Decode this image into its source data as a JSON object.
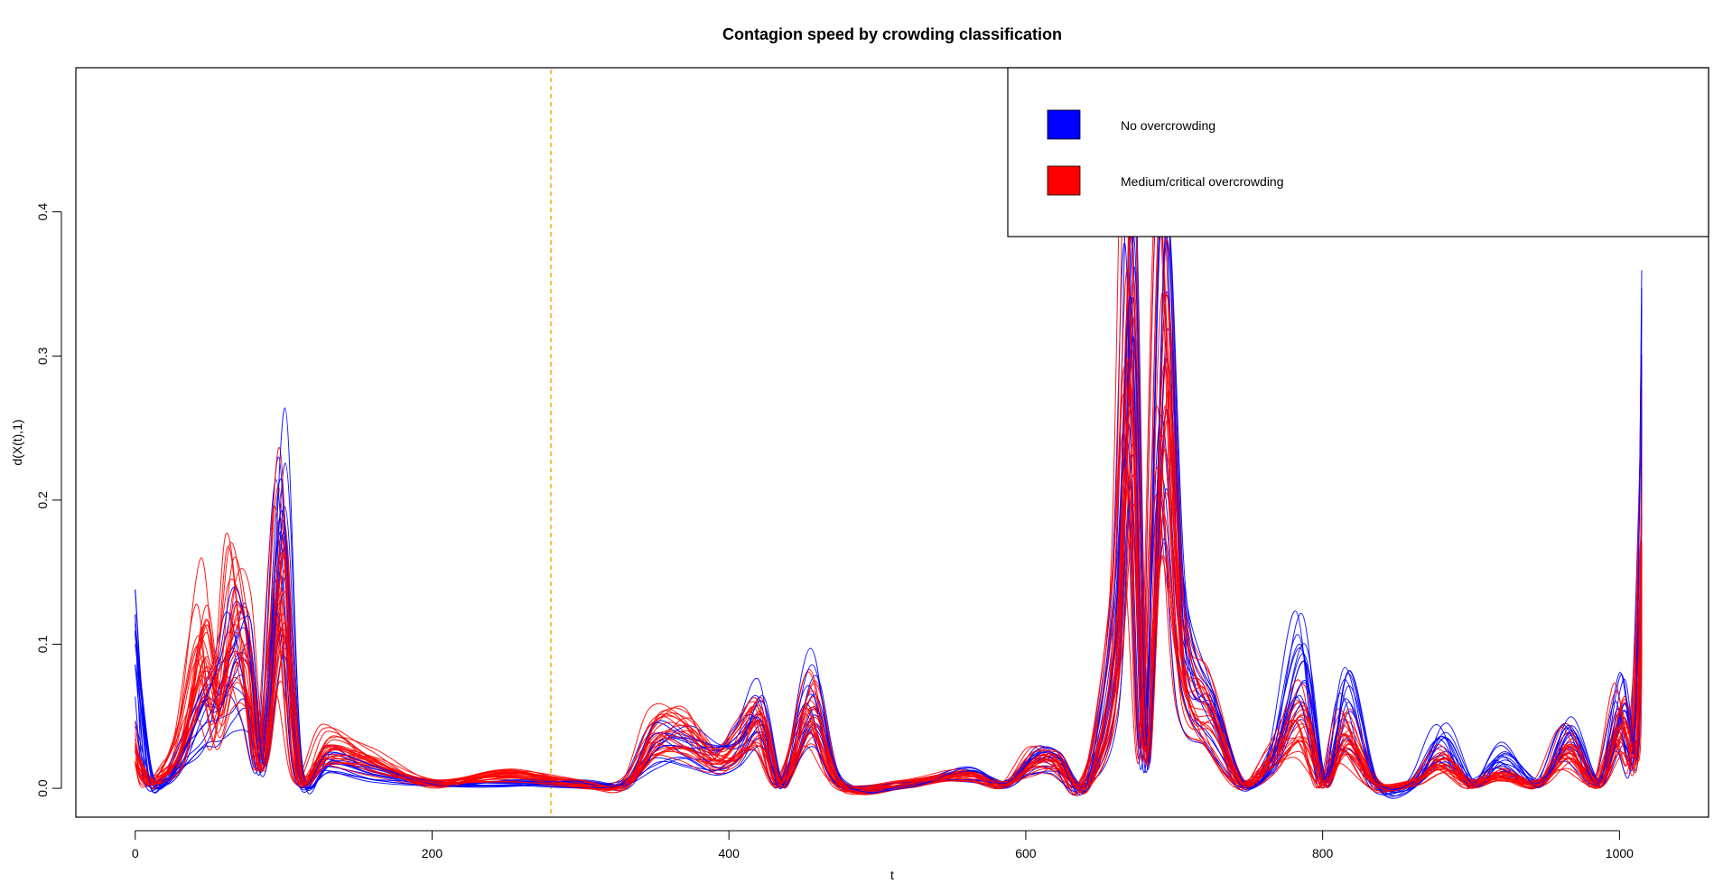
{
  "chart_data": {
    "type": "line",
    "title": "Contagion speed by crowding classification",
    "xlabel": "t",
    "ylabel": "d(X(t),1)",
    "xlim": [
      -40,
      1060
    ],
    "ylim": [
      -0.02,
      0.5
    ],
    "xticks": [
      0,
      200,
      400,
      600,
      800,
      1000
    ],
    "yticks": [
      0.0,
      0.1,
      0.2,
      0.3,
      0.4
    ],
    "ytick_labels": [
      "0.0",
      "0.1",
      "0.2",
      "0.3",
      "0.4"
    ],
    "grid": false,
    "legend_position": "top-right",
    "reference_line": {
      "x": 280,
      "color": "#FFA500",
      "style": "dashed"
    },
    "colors": {
      "No overcrowding": "#0000FF",
      "Medium/critical overcrowding": "#FF0000"
    },
    "series": [
      {
        "name": "No overcrowding",
        "color": "#0000FF",
        "count": 15,
        "x": [
          0,
          8,
          18,
          30,
          45,
          55,
          65,
          75,
          85,
          98,
          110,
          130,
          160,
          200,
          250,
          300,
          330,
          350,
          370,
          390,
          405,
          420,
          435,
          455,
          475,
          520,
          560,
          585,
          605,
          620,
          640,
          660,
          670,
          680,
          692,
          705,
          725,
          745,
          765,
          785,
          800,
          815,
          835,
          860,
          880,
          900,
          920,
          945,
          965,
          985,
          1000,
          1010,
          1015
        ],
        "y": [
          0.1,
          0.01,
          0.0,
          0.02,
          0.05,
          0.06,
          0.09,
          0.08,
          0.02,
          0.19,
          0.01,
          0.02,
          0.01,
          0.0,
          0.0,
          0.0,
          0.0,
          0.03,
          0.03,
          0.02,
          0.03,
          0.05,
          0.0,
          0.06,
          0.0,
          0.0,
          0.01,
          0.0,
          0.02,
          0.02,
          0.0,
          0.1,
          0.32,
          0.02,
          0.29,
          0.1,
          0.05,
          0.0,
          0.02,
          0.09,
          0.0,
          0.06,
          0.0,
          0.0,
          0.03,
          0.0,
          0.02,
          0.0,
          0.04,
          0.0,
          0.05,
          0.03,
          0.23
        ]
      },
      {
        "name": "Medium/critical overcrowding",
        "color": "#FF0000",
        "count": 25,
        "x": [
          0,
          8,
          18,
          30,
          45,
          55,
          65,
          75,
          85,
          98,
          110,
          130,
          160,
          200,
          250,
          300,
          330,
          350,
          370,
          390,
          405,
          420,
          435,
          455,
          475,
          520,
          560,
          585,
          605,
          620,
          640,
          660,
          670,
          680,
          692,
          705,
          725,
          745,
          765,
          785,
          800,
          815,
          835,
          860,
          880,
          900,
          920,
          945,
          965,
          985,
          1000,
          1010,
          1015
        ],
        "y": [
          0.03,
          0.0,
          0.01,
          0.03,
          0.1,
          0.06,
          0.12,
          0.1,
          0.02,
          0.15,
          0.01,
          0.03,
          0.02,
          0.0,
          0.01,
          0.0,
          0.0,
          0.04,
          0.04,
          0.02,
          0.03,
          0.05,
          0.0,
          0.06,
          0.0,
          0.0,
          0.01,
          0.0,
          0.02,
          0.02,
          0.0,
          0.1,
          0.33,
          0.03,
          0.3,
          0.1,
          0.05,
          0.0,
          0.02,
          0.05,
          0.0,
          0.04,
          0.0,
          0.0,
          0.02,
          0.0,
          0.01,
          0.0,
          0.03,
          0.0,
          0.05,
          0.03,
          0.2
        ]
      }
    ],
    "legend": [
      {
        "label": "No overcrowding",
        "color": "#0000FF"
      },
      {
        "label": "Medium/critical overcrowding",
        "color": "#FF0000"
      }
    ]
  }
}
